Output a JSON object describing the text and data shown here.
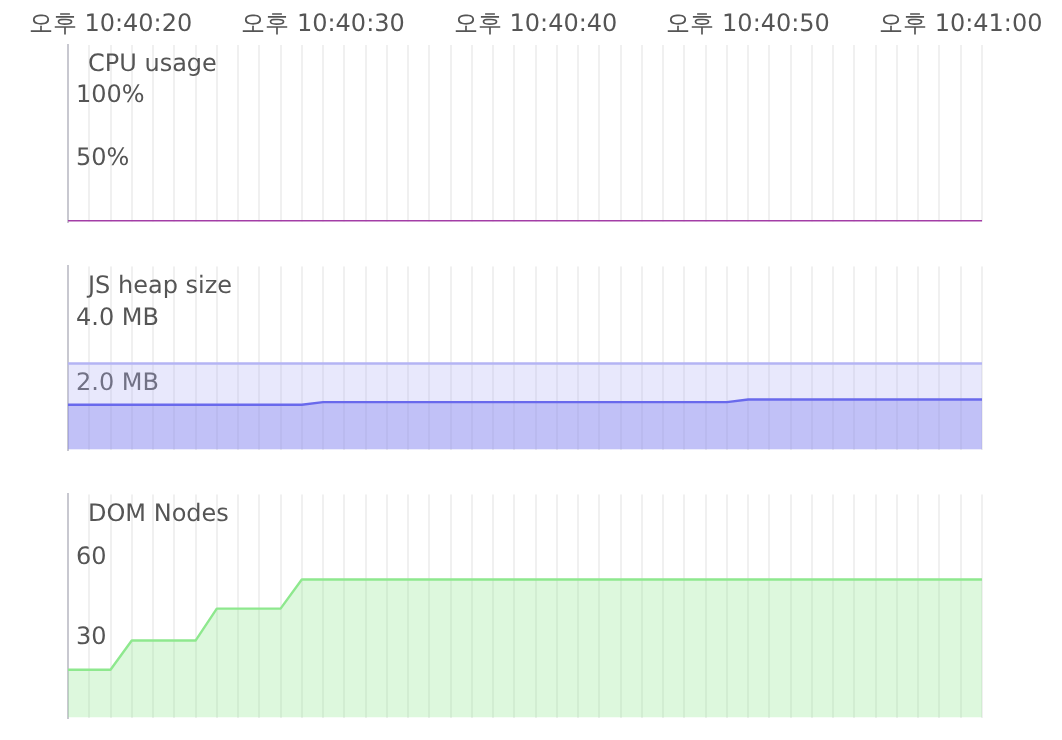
{
  "chart_data": [
    {
      "type": "line",
      "title": "CPU usage",
      "categories": [
        null,
        null,
        "오후 10:40:20",
        null,
        null,
        null,
        null,
        null,
        null,
        null,
        null,
        null,
        "오후 10:40:30",
        null,
        null,
        null,
        null,
        null,
        null,
        null,
        null,
        null,
        "오후 10:40:40",
        null,
        null,
        null,
        null,
        null,
        null,
        null,
        null,
        null,
        "오후 10:40:50",
        null,
        null,
        null,
        null,
        null,
        null,
        null,
        null,
        null,
        "오후 10:41:00",
        null
      ],
      "ylim": [
        0,
        140
      ],
      "yticks": [
        {
          "value": 50,
          "label": "50%"
        },
        {
          "value": 100,
          "label": "100%"
        }
      ],
      "grid": "x",
      "marker": "none",
      "legend": false,
      "series": [
        {
          "color": "#a33ea6",
          "values": [
            0,
            0,
            0,
            0,
            0,
            0,
            0,
            0,
            0,
            0,
            0,
            0,
            0,
            0,
            0,
            0,
            0,
            0,
            0,
            0,
            0,
            0,
            0,
            0,
            0,
            0,
            0,
            0,
            0,
            0,
            0,
            0,
            0,
            0,
            0,
            0,
            0,
            0,
            0,
            0,
            0,
            0,
            0,
            0
          ]
        }
      ]
    },
    {
      "type": "area",
      "title": "JS heap size",
      "categories": [
        null,
        null,
        null,
        null,
        null,
        null,
        null,
        null,
        null,
        null,
        null,
        null,
        null,
        null,
        null,
        null,
        null,
        null,
        null,
        null,
        null,
        null,
        null,
        null,
        null,
        null,
        null,
        null,
        null,
        null,
        null,
        null,
        null,
        null,
        null,
        null,
        null,
        null,
        null,
        null,
        null,
        null,
        null,
        null
      ],
      "tick_labels": "y",
      "ylim": [
        0,
        5.6
      ],
      "yticks": [
        {
          "value": 2,
          "label": "2.0 MB"
        },
        {
          "value": 4,
          "label": "4.0 MB"
        }
      ],
      "grid": "x",
      "marker": "none",
      "legend": false,
      "series": [
        {
          "color": "#b4b4f4",
          "values": [
            2.63,
            2.63,
            2.63,
            2.63,
            2.63,
            2.63,
            2.63,
            2.63,
            2.63,
            2.63,
            2.63,
            2.63,
            2.63,
            2.63,
            2.63,
            2.63,
            2.63,
            2.63,
            2.63,
            2.63,
            2.63,
            2.63,
            2.63,
            2.63,
            2.63,
            2.63,
            2.63,
            2.63,
            2.63,
            2.63,
            2.63,
            2.63,
            2.63,
            2.63,
            2.63,
            2.63,
            2.63,
            2.63,
            2.63,
            2.63,
            2.63,
            2.63,
            2.63,
            2.63
          ]
        },
        {
          "color": "#4a4ae8",
          "values": [
            1.37,
            1.37,
            1.37,
            1.37,
            1.37,
            1.37,
            1.37,
            1.37,
            1.37,
            1.37,
            1.37,
            1.37,
            1.45,
            1.45,
            1.45,
            1.45,
            1.45,
            1.45,
            1.45,
            1.45,
            1.45,
            1.45,
            1.45,
            1.45,
            1.45,
            1.45,
            1.45,
            1.45,
            1.45,
            1.45,
            1.45,
            1.45,
            1.53,
            1.53,
            1.53,
            1.53,
            1.53,
            1.53,
            1.53,
            1.53,
            1.53,
            1.53,
            1.53,
            1.53
          ]
        }
      ]
    },
    {
      "type": "area",
      "title": "DOM Nodes",
      "categories": [
        null,
        null,
        null,
        null,
        null,
        null,
        null,
        null,
        null,
        null,
        null,
        null,
        null,
        null,
        null,
        null,
        null,
        null,
        null,
        null,
        null,
        null,
        null,
        null,
        null,
        null,
        null,
        null,
        null,
        null,
        null,
        null,
        null,
        null,
        null,
        null,
        null,
        null,
        null,
        null,
        null,
        null,
        null,
        null
      ],
      "tick_labels": "y",
      "ylim": [
        0,
        84
      ],
      "yticks": [
        30,
        60
      ],
      "grid": "x",
      "marker": "none",
      "legend": false,
      "series": [
        {
          "color": "#8ee88e",
          "values": [
            18,
            18,
            18,
            29,
            29,
            29,
            29,
            41,
            41,
            41,
            41,
            52,
            52,
            52,
            52,
            52,
            52,
            52,
            52,
            52,
            52,
            52,
            52,
            52,
            52,
            52,
            52,
            52,
            52,
            52,
            52,
            52,
            52,
            52,
            52,
            52,
            52,
            52,
            52,
            52,
            52,
            52,
            52,
            52
          ]
        }
      ]
    }
  ]
}
